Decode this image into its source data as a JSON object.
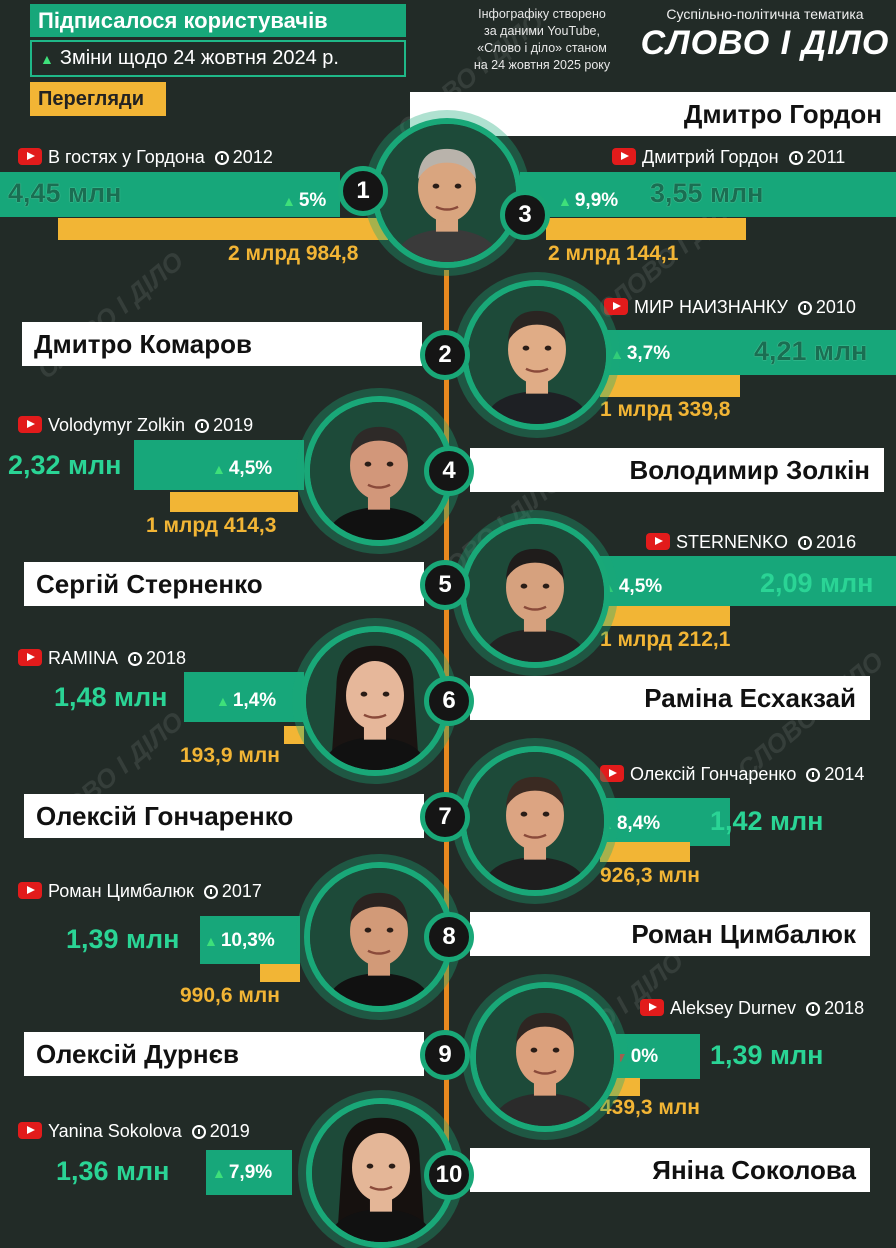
{
  "legend": {
    "subscribers": "Підписалося користувачів",
    "change": "Зміни щодо 24 жовтня 2024 р.",
    "views": "Перегляди"
  },
  "note": [
    "Інфографіку створено",
    "за даними YouTube,",
    "«Слово і діло» станом",
    "на 24 жовтня 2025 року"
  ],
  "theme": "Суспільно-політична тематика",
  "brand": "СЛОВО І ДІЛО",
  "watermark": "СЛОВО І ДІЛО",
  "colors": {
    "background": "#222b27",
    "subscribers": "#17a77a",
    "views": "#f2b535",
    "axis": "#e8891f",
    "up": "#3ee07a",
    "down": "#e63b3b"
  },
  "chart_data": {
    "type": "bar",
    "series": [
      {
        "name": "Підписалося користувачів",
        "unit": "млн"
      },
      {
        "name": "Перегляди"
      }
    ],
    "items": [
      {
        "rank": "1",
        "person": "Дмитро Гордон",
        "channel": "В гостях у Гордона",
        "year": "2012",
        "subs": 4.45,
        "subs_label": "4,45 млн",
        "change": "5%",
        "change_dir": "up",
        "views": 2984.8,
        "views_label": "2 млрд 984,8"
      },
      {
        "rank": "3",
        "person": "Дмитро Гордон",
        "channel": "Дмитрий Гордон",
        "year": "2011",
        "subs": 3.55,
        "subs_label": "3,55 млн",
        "change": "9,9%",
        "change_dir": "up",
        "views": 2144.1,
        "views_label": "2 млрд 144,1"
      },
      {
        "rank": "2",
        "person": "Дмитро Комаров",
        "channel": "МИР НАИЗНАНКУ",
        "year": "2010",
        "subs": 4.21,
        "subs_label": "4,21 млн",
        "change": "3,7%",
        "change_dir": "up",
        "views": 1339.8,
        "views_label": "1 млрд 339,8"
      },
      {
        "rank": "4",
        "person": "Володимир Золкін",
        "channel": "Volodymyr Zolkin",
        "year": "2019",
        "subs": 2.32,
        "subs_label": "2,32 млн",
        "change": "4,5%",
        "change_dir": "up",
        "views": 1414.3,
        "views_label": "1 млрд 414,3"
      },
      {
        "rank": "5",
        "person": "Сергій Стерненко",
        "channel": "STERNENKO",
        "year": "2016",
        "subs": 2.09,
        "subs_label": "2,09 млн",
        "change": "4,5%",
        "change_dir": "up",
        "views": 1212.1,
        "views_label": "1 млрд 212,1"
      },
      {
        "rank": "6",
        "person": "Раміна Есхакзай",
        "channel": "RAMINA",
        "year": "2018",
        "subs": 1.48,
        "subs_label": "1,48 млн",
        "change": "1,4%",
        "change_dir": "up",
        "views": 193.9,
        "views_label": "193,9 млн"
      },
      {
        "rank": "7",
        "person": "Олексій Гончаренко",
        "channel": "Олексій Гончаренко",
        "year": "2014",
        "subs": 1.42,
        "subs_label": "1,42 млн",
        "change": "8,4%",
        "change_dir": "up",
        "views": 926.3,
        "views_label": "926,3 млн"
      },
      {
        "rank": "8",
        "person": "Роман Цимбалюк",
        "channel": "Роман Цимбалюк",
        "year": "2017",
        "subs": 1.39,
        "subs_label": "1,39 млн",
        "change": "10,3%",
        "change_dir": "up",
        "views": 990.6,
        "views_label": "990,6 млн"
      },
      {
        "rank": "9",
        "person": "Олексій Дурнєв",
        "channel": "Aleksey Durnev",
        "year": "2018",
        "subs": 1.39,
        "subs_label": "1,39 млн",
        "change": "0%",
        "change_dir": "both",
        "views": 439.3,
        "views_label": "439,3 млн"
      },
      {
        "rank": "10",
        "person": "Яніна Соколова",
        "channel": "Yanina Sokolova",
        "year": "2019",
        "subs": 1.36,
        "subs_label": "1,36 млн",
        "change": "7,9%",
        "change_dir": "up",
        "views": null,
        "views_label": ""
      }
    ]
  }
}
